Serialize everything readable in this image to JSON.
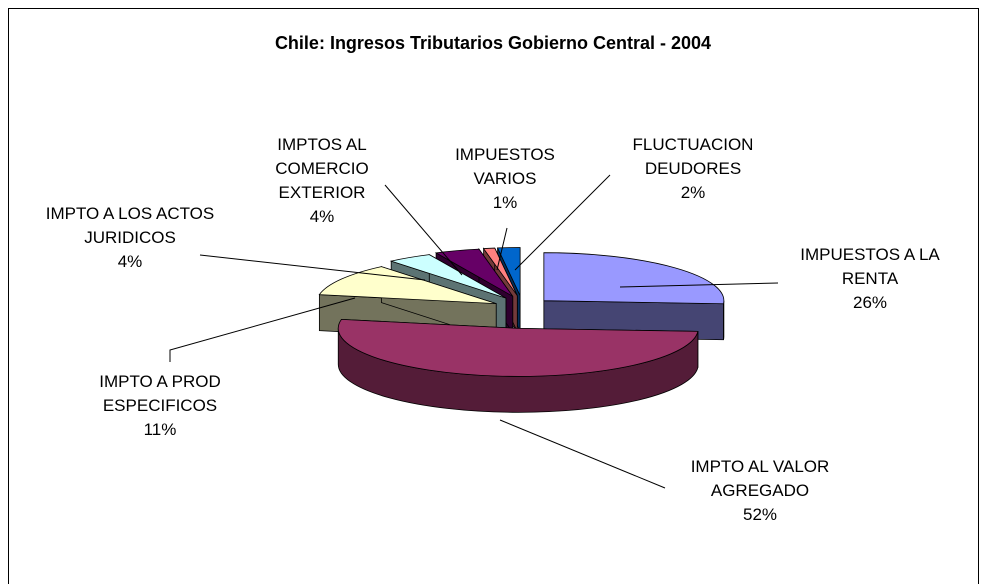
{
  "chart_data": {
    "type": "pie3d",
    "title": "Chile: Ingresos Tributarios Gobierno Central - 2004",
    "categories": [
      "IMPUESTOS A LA RENTA",
      "IMPTO AL VALOR AGREGADO",
      "IMPTO  A PROD ESPECIFICOS",
      "IMPTO A LOS ACTOS JURIDICOS",
      "IMPTOS AL COMERCIO EXTERIOR",
      "IMPUESTOS VARIOS",
      "FLUCTUACION DEUDORES"
    ],
    "values": [
      26,
      52,
      11,
      4,
      4,
      1,
      2
    ],
    "value_labels": [
      "26%",
      "52%",
      "11%",
      "4%",
      "4%",
      "1%",
      "2%"
    ],
    "colors": [
      "#9999ff",
      "#993366",
      "#ffffcc",
      "#ccffff",
      "#660066",
      "#ff8080",
      "#0066cc"
    ]
  }
}
